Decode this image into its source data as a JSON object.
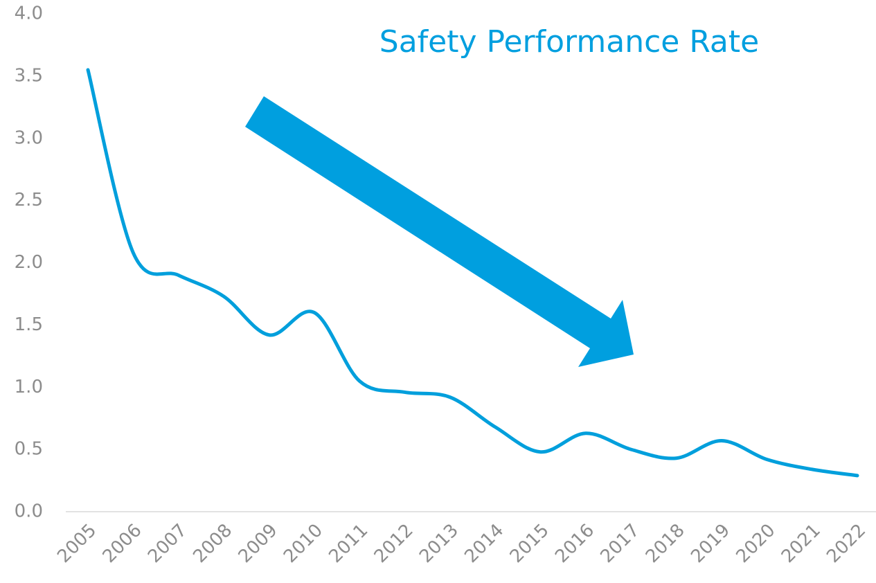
{
  "chart_data": {
    "type": "line",
    "title": "Safety Performance Rate",
    "categories": [
      "2005",
      "2006",
      "2007",
      "2008",
      "2009",
      "2010",
      "2011",
      "2012",
      "2013",
      "2014",
      "2015",
      "2016",
      "2017",
      "2018",
      "2019",
      "2020",
      "2021",
      "2022"
    ],
    "series": [
      {
        "name": "Safety Performance Rate",
        "color": "#009fdc",
        "values": [
          3.55,
          2.08,
          1.9,
          1.73,
          1.42,
          1.6,
          1.05,
          0.96,
          0.92,
          0.68,
          0.48,
          0.63,
          0.5,
          0.43,
          0.57,
          0.42,
          0.34,
          0.29
        ]
      }
    ],
    "ylim": [
      0,
      4
    ],
    "yticks": [
      {
        "value": 0,
        "label": "0.0"
      },
      0.5,
      {
        "value": 1,
        "label": "1.0"
      },
      1.5,
      {
        "value": 2,
        "label": "2.0"
      },
      2.5,
      {
        "value": 3,
        "label": "3.0"
      },
      3.5,
      {
        "value": 4,
        "label": "4.0"
      }
    ],
    "grid": false,
    "smooth": true
  }
}
